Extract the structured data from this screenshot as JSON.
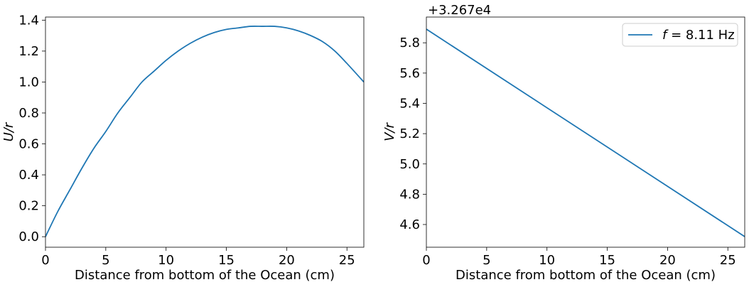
{
  "colors": {
    "line": "#1f77b4",
    "axes": "#000000",
    "legend_border": "#cccccc",
    "background": "#ffffff"
  },
  "chart_data": [
    {
      "type": "line",
      "xlabel": "Distance from bottom of the Ocean (cm)",
      "ylabel": "U/r",
      "xlim": [
        0,
        26.4
      ],
      "ylim": [
        -0.068,
        1.42
      ],
      "xticks": [
        0,
        5,
        10,
        15,
        20,
        25
      ],
      "xtick_labels": [
        "0",
        "5",
        "10",
        "15",
        "20",
        "25"
      ],
      "yticks": [
        0.0,
        0.2,
        0.4,
        0.6,
        0.8,
        1.0,
        1.2,
        1.4
      ],
      "ytick_labels": [
        "0.0",
        "0.2",
        "0.4",
        "0.6",
        "0.8",
        "1.0",
        "1.2",
        "1.4"
      ],
      "grid": false,
      "series": [
        {
          "x": [
            0,
            1,
            2,
            3,
            4,
            5,
            6,
            7,
            8,
            9,
            10,
            11,
            12,
            13,
            14,
            15,
            16,
            17,
            18,
            19,
            20,
            21,
            22,
            23,
            24,
            25,
            26.4
          ],
          "y": [
            0.0,
            0.16,
            0.3,
            0.44,
            0.57,
            0.68,
            0.8,
            0.9,
            1.0,
            1.07,
            1.14,
            1.2,
            1.25,
            1.29,
            1.32,
            1.34,
            1.35,
            1.36,
            1.36,
            1.36,
            1.35,
            1.33,
            1.3,
            1.26,
            1.2,
            1.12,
            1.0
          ]
        }
      ]
    },
    {
      "type": "line",
      "xlabel": "Distance from bottom of the Ocean (cm)",
      "ylabel": "V/r",
      "offset_text": "+3.267e4",
      "xlim": [
        0,
        26.4
      ],
      "ylim": [
        4.45,
        5.97
      ],
      "xticks": [
        0,
        5,
        10,
        15,
        20,
        25
      ],
      "xtick_labels": [
        "0",
        "5",
        "10",
        "15",
        "20",
        "25"
      ],
      "yticks": [
        4.6,
        4.8,
        5.0,
        5.2,
        5.4,
        5.6,
        5.8
      ],
      "ytick_labels": [
        "4.6",
        "4.8",
        "5.0",
        "5.2",
        "5.4",
        "5.6",
        "5.8"
      ],
      "grid": false,
      "legend_position": "top-right",
      "series": [
        {
          "name_prefix": "f",
          "name_suffix": " = 8.11 Hz",
          "x": [
            0,
            26.4
          ],
          "y": [
            5.89,
            4.52
          ]
        }
      ]
    }
  ]
}
